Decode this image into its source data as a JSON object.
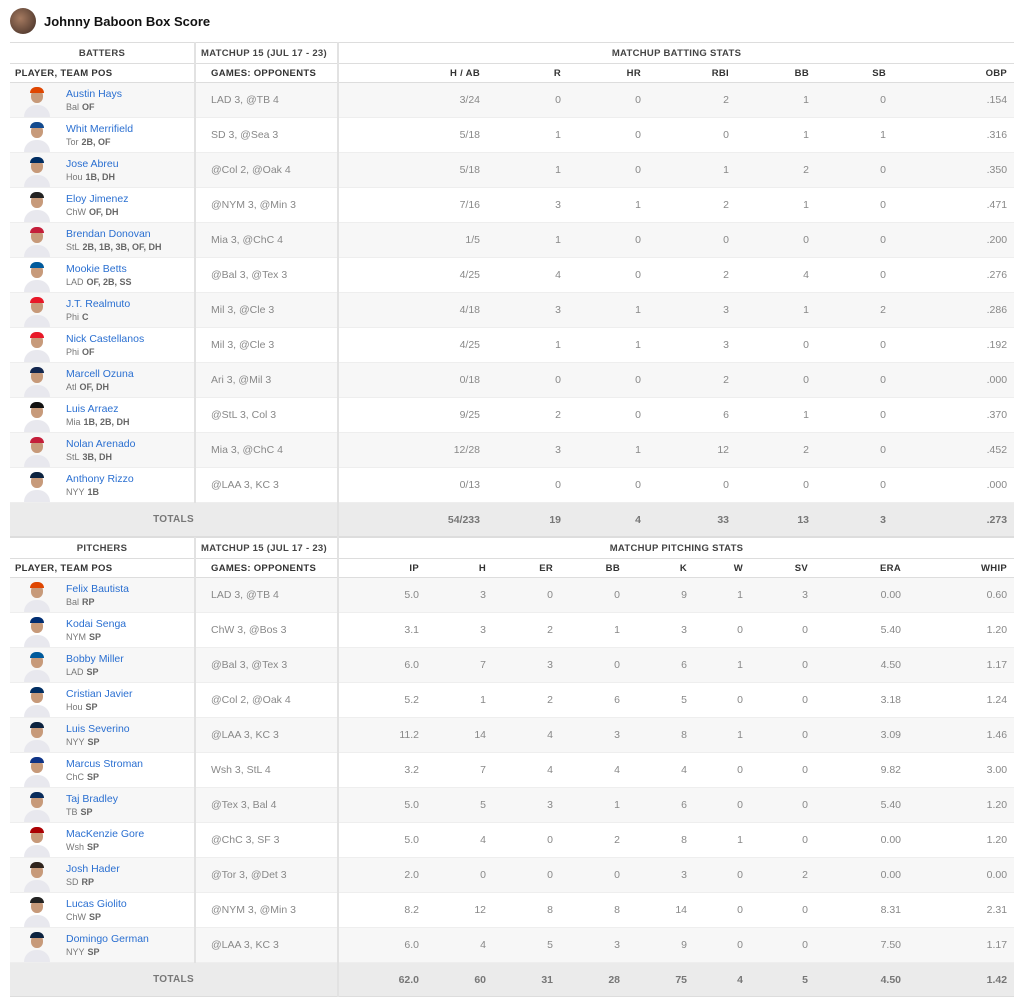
{
  "title": "Johnny Baboon Box Score",
  "batters": {
    "section": "BATTERS",
    "matchup": "MATCHUP 15 (JUL 17 - 23)",
    "stats_title": "MATCHUP BATTING STATS",
    "col_player": "PLAYER, TEAM POS",
    "col_games": "GAMES: OPPONENTS",
    "columns": [
      "H / AB",
      "R",
      "HR",
      "RBI",
      "BB",
      "SB",
      "OBP"
    ],
    "rows": [
      {
        "name": "Austin Hays",
        "team": "Bal",
        "pos": "OF",
        "games": "LAD 3, @TB 4",
        "stats": [
          "3/24",
          "0",
          "0",
          "2",
          "1",
          "0",
          ".154"
        ],
        "cap": "#df4601"
      },
      {
        "name": "Whit Merrifield",
        "team": "Tor",
        "pos": "2B, OF",
        "games": "SD 3, @Sea 3",
        "stats": [
          "5/18",
          "1",
          "0",
          "0",
          "1",
          "1",
          ".316"
        ],
        "cap": "#134a8e"
      },
      {
        "name": "Jose Abreu",
        "team": "Hou",
        "pos": "1B, DH",
        "games": "@Col 2, @Oak 4",
        "stats": [
          "5/18",
          "1",
          "0",
          "1",
          "2",
          "0",
          ".350"
        ],
        "cap": "#002d62"
      },
      {
        "name": "Eloy Jimenez",
        "team": "ChW",
        "pos": "OF, DH",
        "games": "@NYM 3, @Min 3",
        "stats": [
          "7/16",
          "3",
          "1",
          "2",
          "1",
          "0",
          ".471"
        ],
        "cap": "#222"
      },
      {
        "name": "Brendan Donovan",
        "team": "StL",
        "pos": "2B, 1B, 3B, OF, DH",
        "games": "Mia 3, @ChC 4",
        "stats": [
          "1/5",
          "1",
          "0",
          "0",
          "0",
          "0",
          ".200"
        ],
        "cap": "#c41e3a"
      },
      {
        "name": "Mookie Betts",
        "team": "LAD",
        "pos": "OF, 2B, SS",
        "games": "@Bal 3, @Tex 3",
        "stats": [
          "4/25",
          "4",
          "0",
          "2",
          "4",
          "0",
          ".276"
        ],
        "cap": "#005a9c"
      },
      {
        "name": "J.T. Realmuto",
        "team": "Phi",
        "pos": "C",
        "games": "Mil 3, @Cle 3",
        "stats": [
          "4/18",
          "3",
          "1",
          "3",
          "1",
          "2",
          ".286"
        ],
        "cap": "#e81828"
      },
      {
        "name": "Nick Castellanos",
        "team": "Phi",
        "pos": "OF",
        "games": "Mil 3, @Cle 3",
        "stats": [
          "4/25",
          "1",
          "1",
          "3",
          "0",
          "0",
          ".192"
        ],
        "cap": "#e81828"
      },
      {
        "name": "Marcell Ozuna",
        "team": "Atl",
        "pos": "OF, DH",
        "games": "Ari 3, @Mil 3",
        "stats": [
          "0/18",
          "0",
          "0",
          "2",
          "0",
          "0",
          ".000"
        ],
        "cap": "#13274f"
      },
      {
        "name": "Luis Arraez",
        "team": "Mia",
        "pos": "1B, 2B, DH",
        "games": "@StL 3, Col 3",
        "stats": [
          "9/25",
          "2",
          "0",
          "6",
          "1",
          "0",
          ".370"
        ],
        "cap": "#111"
      },
      {
        "name": "Nolan Arenado",
        "team": "StL",
        "pos": "3B, DH",
        "games": "Mia 3, @ChC 4",
        "stats": [
          "12/28",
          "3",
          "1",
          "12",
          "2",
          "0",
          ".452"
        ],
        "cap": "#c41e3a"
      },
      {
        "name": "Anthony Rizzo",
        "team": "NYY",
        "pos": "1B",
        "games": "@LAA 3, KC 3",
        "stats": [
          "0/13",
          "0",
          "0",
          "0",
          "0",
          "0",
          ".000"
        ],
        "cap": "#0c2340"
      }
    ],
    "totals_label": "TOTALS",
    "totals": [
      "54/233",
      "19",
      "4",
      "33",
      "13",
      "3",
      ".273"
    ]
  },
  "pitchers": {
    "section": "PITCHERS",
    "matchup": "MATCHUP 15 (JUL 17 - 23)",
    "stats_title": "MATCHUP PITCHING STATS",
    "col_player": "PLAYER, TEAM POS",
    "col_games": "GAMES: OPPONENTS",
    "columns": [
      "IP",
      "H",
      "ER",
      "BB",
      "K",
      "W",
      "SV",
      "ERA",
      "WHIP"
    ],
    "rows": [
      {
        "name": "Felix Bautista",
        "team": "Bal",
        "pos": "RP",
        "games": "LAD 3, @TB 4",
        "stats": [
          "5.0",
          "3",
          "0",
          "0",
          "9",
          "1",
          "3",
          "0.00",
          "0.60"
        ],
        "cap": "#df4601"
      },
      {
        "name": "Kodai Senga",
        "team": "NYM",
        "pos": "SP",
        "games": "ChW 3, @Bos 3",
        "stats": [
          "3.1",
          "3",
          "2",
          "1",
          "3",
          "0",
          "0",
          "5.40",
          "1.20"
        ],
        "cap": "#002d72"
      },
      {
        "name": "Bobby Miller",
        "team": "LAD",
        "pos": "SP",
        "games": "@Bal 3, @Tex 3",
        "stats": [
          "6.0",
          "7",
          "3",
          "0",
          "6",
          "1",
          "0",
          "4.50",
          "1.17"
        ],
        "cap": "#005a9c"
      },
      {
        "name": "Cristian Javier",
        "team": "Hou",
        "pos": "SP",
        "games": "@Col 2, @Oak 4",
        "stats": [
          "5.2",
          "1",
          "2",
          "6",
          "5",
          "0",
          "0",
          "3.18",
          "1.24"
        ],
        "cap": "#002d62"
      },
      {
        "name": "Luis Severino",
        "team": "NYY",
        "pos": "SP",
        "games": "@LAA 3, KC 3",
        "stats": [
          "11.2",
          "14",
          "4",
          "3",
          "8",
          "1",
          "0",
          "3.09",
          "1.46"
        ],
        "cap": "#0c2340"
      },
      {
        "name": "Marcus Stroman",
        "team": "ChC",
        "pos": "SP",
        "games": "Wsh 3, StL 4",
        "stats": [
          "3.2",
          "7",
          "4",
          "4",
          "4",
          "0",
          "0",
          "9.82",
          "3.00"
        ],
        "cap": "#0e3386"
      },
      {
        "name": "Taj Bradley",
        "team": "TB",
        "pos": "SP",
        "games": "@Tex 3, Bal 4",
        "stats": [
          "5.0",
          "5",
          "3",
          "1",
          "6",
          "0",
          "0",
          "5.40",
          "1.20"
        ],
        "cap": "#092c5c"
      },
      {
        "name": "MacKenzie Gore",
        "team": "Wsh",
        "pos": "SP",
        "games": "@ChC 3, SF 3",
        "stats": [
          "5.0",
          "4",
          "0",
          "2",
          "8",
          "1",
          "0",
          "0.00",
          "1.20"
        ],
        "cap": "#ab0003"
      },
      {
        "name": "Josh Hader",
        "team": "SD",
        "pos": "RP",
        "games": "@Tor 3, @Det 3",
        "stats": [
          "2.0",
          "0",
          "0",
          "0",
          "3",
          "0",
          "2",
          "0.00",
          "0.00"
        ],
        "cap": "#2f241d"
      },
      {
        "name": "Lucas Giolito",
        "team": "ChW",
        "pos": "SP",
        "games": "@NYM 3, @Min 3",
        "stats": [
          "8.2",
          "12",
          "8",
          "8",
          "14",
          "0",
          "0",
          "8.31",
          "2.31"
        ],
        "cap": "#222"
      },
      {
        "name": "Domingo German",
        "team": "NYY",
        "pos": "SP",
        "games": "@LAA 3, KC 3",
        "stats": [
          "6.0",
          "4",
          "5",
          "3",
          "9",
          "0",
          "0",
          "7.50",
          "1.17"
        ],
        "cap": "#0c2340"
      }
    ],
    "totals_label": "TOTALS",
    "totals": [
      "62.0",
      "60",
      "31",
      "28",
      "75",
      "4",
      "5",
      "4.50",
      "1.42"
    ]
  }
}
